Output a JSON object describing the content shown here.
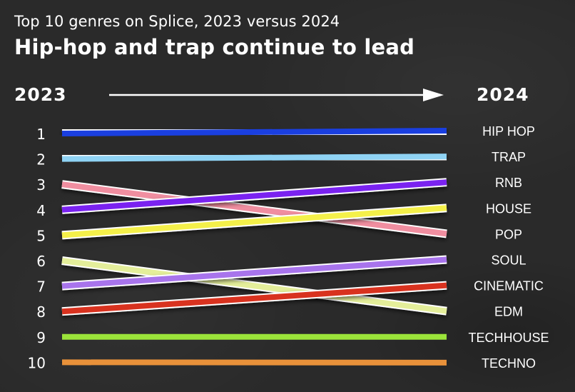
{
  "subtitle": "Top 10 genres on Splice, 2023 versus 2024",
  "title": "Hip-hop and trap continue to lead",
  "year_from": "2023",
  "year_to": "2024",
  "chart_data": {
    "type": "line",
    "subtype": "slope",
    "x": [
      "2023",
      "2024"
    ],
    "ranks": [
      "1",
      "2",
      "3",
      "4",
      "5",
      "6",
      "7",
      "8",
      "9",
      "10"
    ],
    "series": [
      {
        "name": "HIP HOP",
        "rank_2023": 1,
        "rank_2024": 1,
        "color": "#1a3fe0"
      },
      {
        "name": "TRAP",
        "rank_2023": 2,
        "rank_2024": 2,
        "color": "#8fd3f4"
      },
      {
        "name": "POP",
        "rank_2023": 3,
        "rank_2024": 5,
        "color": "#f08ea0"
      },
      {
        "name": "RNB",
        "rank_2023": 4,
        "rank_2024": 3,
        "color": "#7a22f0"
      },
      {
        "name": "HOUSE",
        "rank_2023": 5,
        "rank_2024": 4,
        "color": "#f4f04a"
      },
      {
        "name": "EDM",
        "rank_2023": 6,
        "rank_2024": 8,
        "color": "#e4ee9a"
      },
      {
        "name": "SOUL",
        "rank_2023": 7,
        "rank_2024": 6,
        "color": "#a874ec"
      },
      {
        "name": "CINEMATIC",
        "rank_2023": 8,
        "rank_2024": 7,
        "color": "#d8321f"
      },
      {
        "name": "TECHHOUSE",
        "rank_2023": 9,
        "rank_2024": 9,
        "color": "#9be43a"
      },
      {
        "name": "TECHNO",
        "rank_2023": 10,
        "rank_2024": 10,
        "color": "#e8913a"
      }
    ],
    "labels_2024": [
      "HIP HOP",
      "TRAP",
      "RNB",
      "HOUSE",
      "POP",
      "SOUL",
      "CINEMATIC",
      "EDM",
      "TECHHOUSE",
      "TECHNO"
    ]
  }
}
